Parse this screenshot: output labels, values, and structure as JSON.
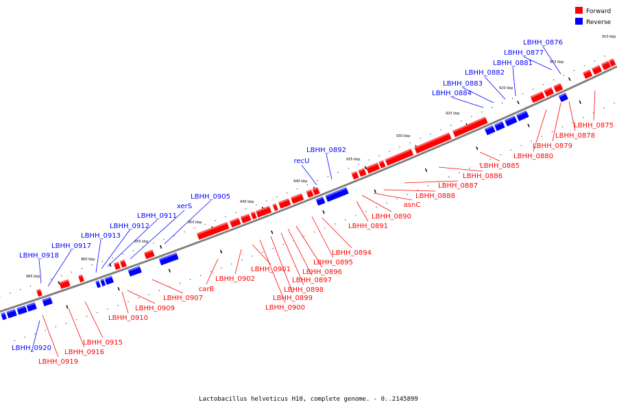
{
  "legend": [
    {
      "label": "Forward",
      "color": "#ff0000"
    },
    {
      "label": "Reverse",
      "color": "#0000ff"
    }
  ],
  "caption": "Lactobacillus helveticus H10, complete genome. - 0..2145899",
  "colors": {
    "forward": "#ff0000",
    "reverse": "#0000ff",
    "backbone": "#808080"
  },
  "scale_labels": [
    "910 kbp",
    "915 kbp",
    "920 kbp",
    "925 kbp",
    "930 kbp",
    "935 kbp",
    "940 kbp",
    "945 kbp",
    "950 kbp",
    "955 kbp",
    "960 kbp",
    "965 kbp"
  ],
  "forward_genes": [
    "LBHH_0875",
    "LBHH_0878",
    "LBHH_0879",
    "LBHH_0880",
    "LBHH_0885",
    "LBHH_0886",
    "LBHH_0887",
    "LBHH_0888",
    "asnC",
    "LBHH_0890",
    "LBHH_0891",
    "LBHH_0894",
    "LBHH_0895",
    "LBHH_0896",
    "LBHH_0897",
    "LBHH_0898",
    "LBHH_0899",
    "LBHH_0900",
    "LBHH_0901",
    "LBHH_0902",
    "carB",
    "LBHH_0907",
    "LBHH_0909",
    "LBHH_0910",
    "LBHH_0915",
    "LBHH_0916",
    "LBHH_0919"
  ],
  "reverse_genes": [
    "LBHH_0876",
    "LBHH_0877",
    "LBHH_0881",
    "LBHH_0882",
    "LBHH_0883",
    "LBHH_0884",
    "LBHH_0892",
    "recU",
    "LBHH_0905",
    "xerS",
    "LBHH_0911",
    "LBHH_0912",
    "LBHH_0913",
    "LBHH_0917",
    "LBHH_0918",
    "LBHH_0920"
  ]
}
